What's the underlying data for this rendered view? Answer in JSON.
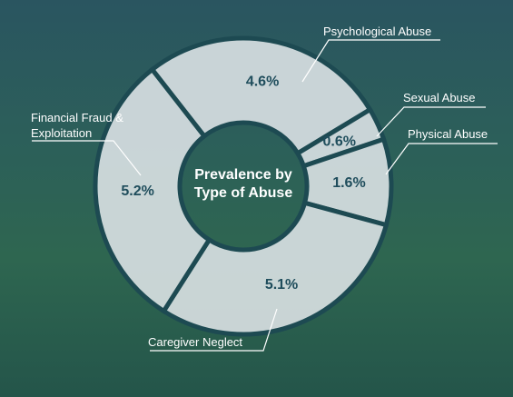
{
  "chart_data": {
    "type": "donut",
    "title": "Prevalence by Type of Abuse",
    "categories": [
      "Psychological Abuse",
      "Sexual Abuse",
      "Physical Abuse",
      "Caregiver Neglect",
      "Financial Fraud & Exploitation"
    ],
    "values": [
      4.6,
      0.6,
      1.6,
      5.1,
      5.2
    ],
    "value_labels": [
      "4.6%",
      "0.6%",
      "1.6%",
      "5.1%",
      "5.2%"
    ],
    "color": "#dfe5e8"
  }
}
